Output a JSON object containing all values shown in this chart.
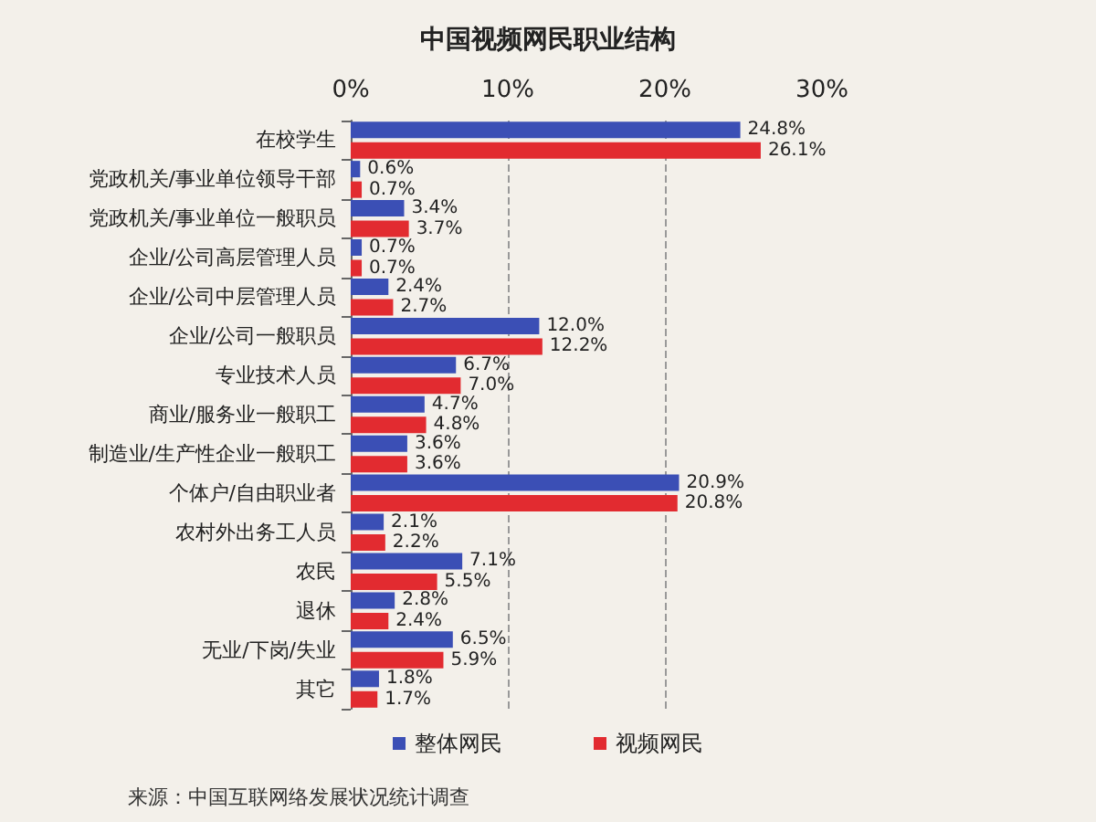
{
  "chart_data": {
    "type": "bar",
    "orientation": "horizontal",
    "title": "中国视频网民职业结构",
    "categories": [
      "在校学生",
      "党政机关/事业单位领导干部",
      "党政机关/事业单位一般职员",
      "企业/公司高层管理人员",
      "企业/公司中层管理人员",
      "企业/公司一般职员",
      "专业技术人员",
      "商业/服务业一般职工",
      "制造业/生产性企业一般职工",
      "个体户/自由职业者",
      "农村外出务工人员",
      "农民",
      "退休",
      "无业/下岗/失业",
      "其它"
    ],
    "series": [
      {
        "name": "整体网民",
        "color": "#3b4fb5",
        "values": [
          24.8,
          0.6,
          3.4,
          0.7,
          2.4,
          12.0,
          6.7,
          4.7,
          3.6,
          20.9,
          2.1,
          7.1,
          2.8,
          6.5,
          1.8
        ],
        "value_labels": [
          "24.8%",
          "0.6%",
          "3.4%",
          "0.7%",
          "2.4%",
          "12.0%",
          "6.7%",
          "4.7%",
          "3.6%",
          "20.9%",
          "2.1%",
          "7.1%",
          "2.8%",
          "6.5%",
          "1.8%"
        ]
      },
      {
        "name": "视频网民",
        "color": "#e22b30",
        "values": [
          26.1,
          0.7,
          3.7,
          0.7,
          2.7,
          12.2,
          7.0,
          4.8,
          3.6,
          20.8,
          2.2,
          5.5,
          2.4,
          5.9,
          1.7
        ],
        "value_labels": [
          "26.1%",
          "0.7%",
          "3.7%",
          "0.7%",
          "2.7%",
          "12.2%",
          "7.0%",
          "4.8%",
          "3.6%",
          "20.8%",
          "2.2%",
          "5.5%",
          "2.4%",
          "5.9%",
          "1.7%"
        ]
      }
    ],
    "xlim": [
      0,
      30
    ],
    "xticks": [
      {
        "value": 0,
        "label": "0%"
      },
      {
        "value": 10,
        "label": "10%"
      },
      {
        "value": 20,
        "label": "20%"
      },
      {
        "value": 30,
        "label": "30%"
      }
    ],
    "grid": "x",
    "legend": "bottom",
    "annotations": [
      "来源：中国互联网络发展状况统计调查"
    ]
  }
}
